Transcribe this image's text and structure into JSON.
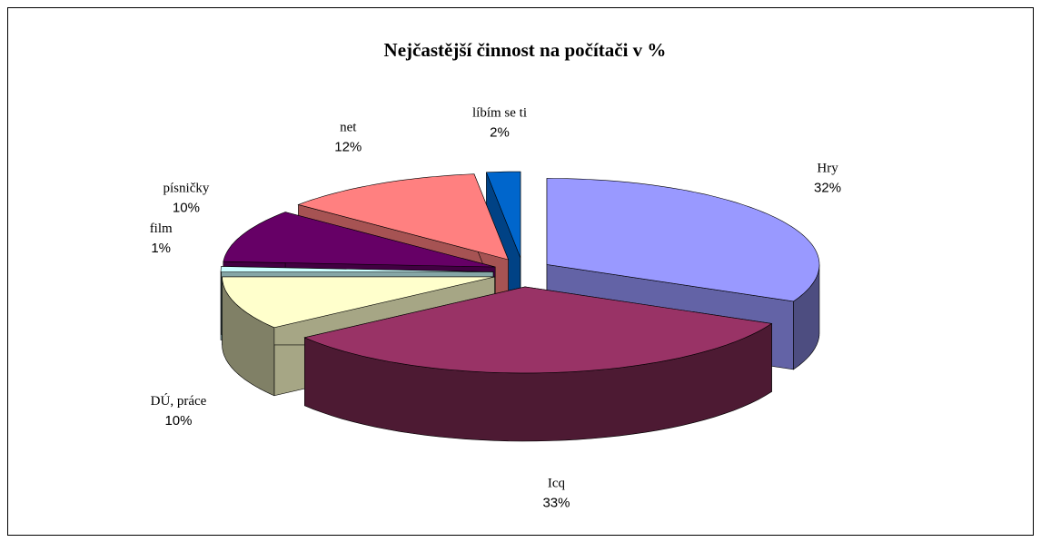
{
  "chart_data": {
    "type": "pie3d",
    "title": "Nejčastější činnost na počítači v  %",
    "categories": [
      "Hry",
      "Icq",
      "DÚ, práce",
      "film",
      "písničky",
      "net",
      "líbím se ti"
    ],
    "values": [
      32,
      33,
      10,
      1,
      10,
      12,
      2
    ],
    "value_labels": [
      "32%",
      "33%",
      "10%",
      "1%",
      "10%",
      "12%",
      "2%"
    ],
    "colors": [
      "#9999ff",
      "#993366",
      "#ffffcc",
      "#ccffff",
      "#660066",
      "#ff8080",
      "#0066cc"
    ]
  }
}
